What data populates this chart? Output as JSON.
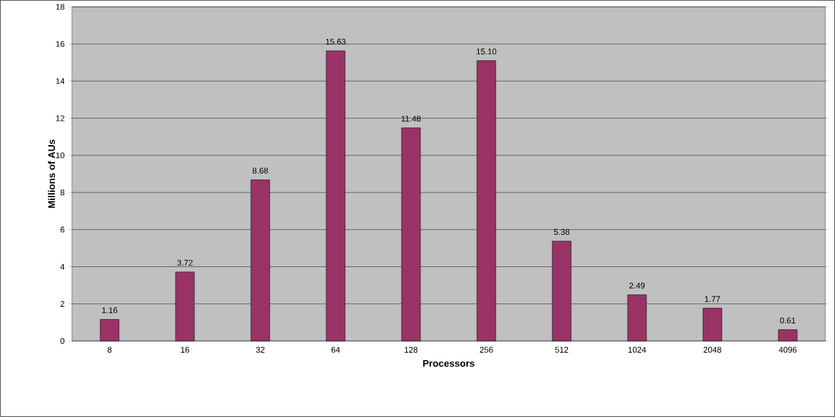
{
  "chart_data": {
    "type": "bar",
    "xlabel": "Processors",
    "ylabel": "Millions of AUs",
    "categories": [
      "8",
      "16",
      "32",
      "64",
      "128",
      "256",
      "512",
      "1024",
      "2048",
      "4096"
    ],
    "values": [
      1.16,
      3.72,
      8.68,
      15.63,
      11.48,
      15.1,
      5.38,
      2.49,
      1.77,
      0.61
    ],
    "value_labels": [
      "1.16",
      "3.72",
      "8.68",
      "15.63",
      "11.48",
      "15.10",
      "5.38",
      "2.49",
      "1.77",
      "0.61"
    ],
    "color": "#993366",
    "ylim": [
      0,
      18
    ],
    "yticks": [
      0,
      2,
      4,
      6,
      8,
      10,
      12,
      14,
      16,
      18
    ],
    "grid": "y"
  }
}
